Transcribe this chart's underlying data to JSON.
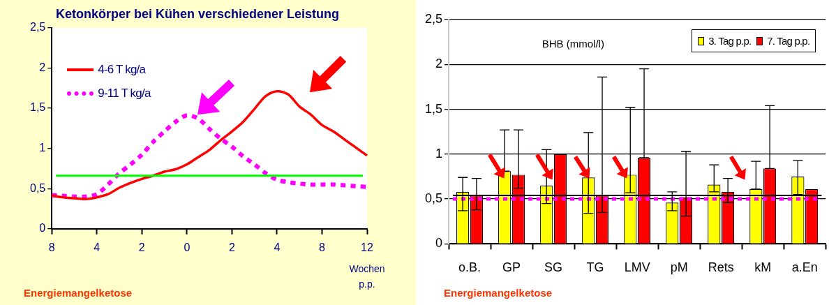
{
  "chart_data": [
    {
      "type": "line",
      "title": "Ketonkörper bei Kühen verschiedener Leistung",
      "xlabel": "Wochen p.p.",
      "categories": [
        "8",
        null,
        null,
        null,
        "4",
        null,
        null,
        null,
        "2",
        null,
        null,
        null,
        "0",
        null,
        null,
        null,
        "2",
        null,
        null,
        null,
        "4",
        null,
        null,
        null,
        "8",
        null,
        null,
        null,
        "12"
      ],
      "series": [
        {
          "name": "4-6 T kg/a",
          "color": "#ff0000",
          "line_style": "solid",
          "values": [
            0.41,
            0.39,
            0.38,
            0.37,
            0.39,
            0.43,
            0.51,
            0.57,
            0.62,
            0.66,
            0.71,
            0.74,
            0.8,
            0.89,
            0.98,
            1.1,
            1.21,
            1.33,
            1.49,
            1.65,
            1.71,
            1.67,
            1.52,
            1.42,
            1.29,
            1.21,
            1.11,
            1.01,
            0.91
          ]
        },
        {
          "name": "9-11 T kg/a",
          "color": "#ff00ff",
          "line_style": "dotted",
          "values": [
            0.42,
            0.41,
            0.4,
            0.4,
            0.43,
            0.55,
            0.69,
            0.8,
            0.92,
            1.08,
            1.21,
            1.33,
            1.41,
            1.37,
            1.24,
            1.12,
            1.02,
            0.9,
            0.8,
            0.69,
            0.61,
            0.58,
            0.56,
            0.55,
            0.55,
            0.55,
            0.54,
            0.53,
            0.52
          ]
        }
      ],
      "ylim": [
        0,
        2.5
      ],
      "yticks": [
        0,
        {
          "value": 0.5,
          "label": "0,5"
        },
        1,
        {
          "value": 1.5,
          "label": "1,5"
        },
        2,
        {
          "value": 2.5,
          "label": "2,5"
        }
      ],
      "ref_lines": [
        {
          "axis": "y",
          "value": 0.66,
          "color": "#00ff00",
          "line_style": "solid"
        }
      ],
      "legend": "top left",
      "marker": "none",
      "annotations": [
        "Energiemangelketose"
      ]
    },
    {
      "type": "bar",
      "title": "BHB (mmol/l)",
      "categories": [
        "o.B.",
        "GP",
        "SG",
        "TG",
        "LMV",
        "pM",
        "Rets",
        "kM",
        "a.En"
      ],
      "series": [
        {
          "name": "3. Tag p.p.",
          "color": "#ffff00",
          "values": [
            0.58,
            0.81,
            0.65,
            0.74,
            0.77,
            0.46,
            0.66,
            0.61,
            0.75
          ],
          "errors": [
            [
              0.37,
              0.74
            ],
            [
              0.81,
              1.27
            ],
            [
              0.45,
              1.05
            ],
            [
              0.34,
              1.24
            ],
            [
              0.57,
              1.52
            ],
            [
              0.37,
              0.58
            ],
            [
              0.58,
              0.88
            ],
            [
              0.61,
              0.92
            ],
            [
              0.55,
              0.93
            ]
          ]
        },
        {
          "name": "7. Tag p.p.",
          "color": "#ff0000",
          "values": [
            0.54,
            0.77,
            1.0,
            0.54,
            0.96,
            0.52,
            0.58,
            0.84,
            0.61
          ],
          "errors": [
            [
              0.38,
              0.73
            ],
            [
              0.62,
              1.27
            ],
            null,
            [
              0.35,
              1.86
            ],
            [
              0.96,
              1.95
            ],
            [
              0.31,
              1.03
            ],
            [
              0.46,
              0.73
            ],
            [
              0.84,
              1.54
            ],
            null
          ]
        }
      ],
      "ylim": [
        0,
        2.5
      ],
      "yticks": [
        0,
        {
          "value": 0.5,
          "label": "0,5"
        },
        1,
        {
          "value": 1.5,
          "label": "1,5"
        },
        2,
        {
          "value": 2.5,
          "label": "2,5"
        }
      ],
      "grid": "y",
      "legend": "top right",
      "ref_lines": [
        {
          "axis": "y",
          "value": 0.54,
          "color": "#000000",
          "line_style": "solid"
        },
        {
          "axis": "y",
          "value": 0.5,
          "color": "#ff00ff",
          "line_style": "dotted"
        }
      ],
      "annotations": [
        "Energiemangelketose"
      ]
    }
  ]
}
